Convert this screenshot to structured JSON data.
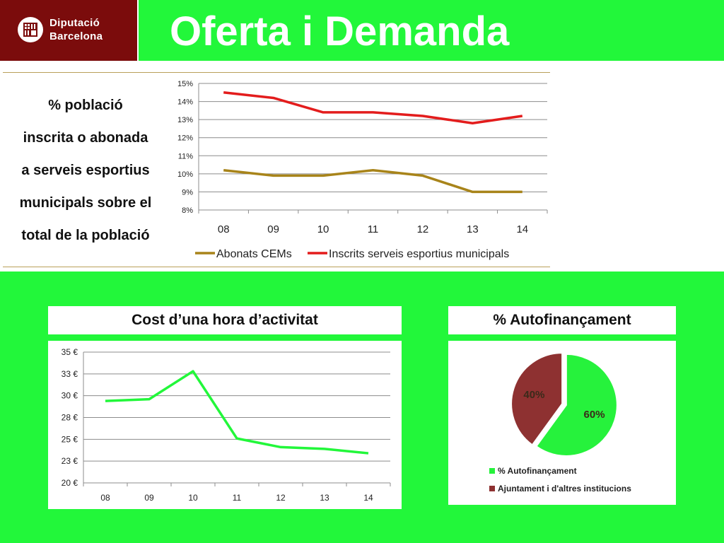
{
  "logo": {
    "line1": "Diputació",
    "line2": "Barcelona"
  },
  "header": {
    "title": "Oferta i Demanda"
  },
  "top_caption_lines": [
    "% població",
    "inscrita o abonada",
    "a serveis esportius",
    "municipals sobre el",
    "total de la població"
  ],
  "colors": {
    "green": "#22f73a",
    "maroon": "#7b0c0c",
    "gold": "#a8841a",
    "red": "#e31c1c",
    "pie_green": "#26f23c",
    "pie_maroon": "#8e3131"
  },
  "chart_data": [
    {
      "type": "line",
      "title": "",
      "categories": [
        "08",
        "09",
        "10",
        "11",
        "12",
        "13",
        "14"
      ],
      "yticks": [
        "8%",
        "9%",
        "10%",
        "11%",
        "12%",
        "13%",
        "14%",
        "15%"
      ],
      "ylim": [
        8,
        15
      ],
      "grid": true,
      "legend": "bottom",
      "series": [
        {
          "name": "Abonats CEMs",
          "values": [
            10.2,
            9.9,
            9.9,
            10.2,
            9.9,
            9.0,
            9.0
          ]
        },
        {
          "name": "Inscrits serveis esportius municipals",
          "values": [
            14.5,
            14.2,
            13.4,
            13.4,
            13.2,
            12.8,
            13.2
          ]
        }
      ]
    },
    {
      "type": "line",
      "title": "Cost d’una hora d’activitat",
      "categories": [
        "08",
        "09",
        "10",
        "11",
        "12",
        "13",
        "14"
      ],
      "yticks": [
        "20 €",
        "23 €",
        "25 €",
        "28 €",
        "30 €",
        "33 €",
        "35 €"
      ],
      "ylim": [
        20,
        35
      ],
      "grid": true,
      "series": [
        {
          "values": [
            29.4,
            29.6,
            32.8,
            25.1,
            24.1,
            23.9,
            23.4
          ]
        }
      ]
    },
    {
      "type": "pie",
      "title": "% Autofinançament",
      "legend": "bottom",
      "slices": [
        {
          "name": "% Autofinançament",
          "value": 60,
          "label": "60%"
        },
        {
          "name": "Ajuntament i d'altres institucions",
          "value": 40,
          "label": "40%"
        }
      ]
    }
  ]
}
